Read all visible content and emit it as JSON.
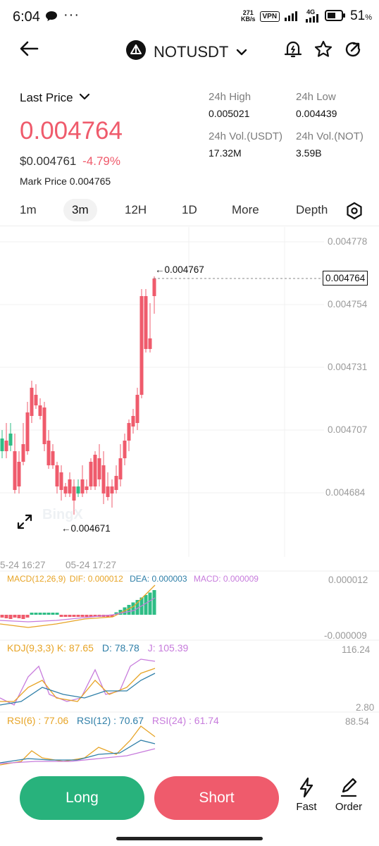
{
  "status_bar": {
    "time": "6:04",
    "net_speed_value": "271",
    "net_speed_unit": "KB/s",
    "vpn": "VPN",
    "network": "4G",
    "battery": "51",
    "battery_unit": "%"
  },
  "header": {
    "symbol": "NOTUSDT",
    "icons": [
      "back-arrow-icon",
      "chevron-down-icon",
      "price-alert-icon",
      "star-icon",
      "share-icon"
    ]
  },
  "price": {
    "mode_label": "Last Price",
    "last_price": "0.004764",
    "usd_price": "$0.004761",
    "change": "-4.79%",
    "mark_price_label": "Mark Price",
    "mark_price": "0.004765"
  },
  "stats": {
    "high_label": "24h High",
    "high": "0.005021",
    "low_label": "24h Low",
    "low": "0.004439",
    "vol_usdt_label": "24h Vol.(USDT)",
    "vol_usdt": "17.32M",
    "vol_not_label": "24h Vol.(NOT)",
    "vol_not": "3.59B"
  },
  "timeframes": {
    "items": [
      "1m",
      "3m",
      "12H",
      "1D",
      "More",
      "Depth"
    ],
    "selected": "3m"
  },
  "chart": {
    "y_labels": [
      "0.004778",
      "0.004754",
      "0.004731",
      "0.004707",
      "0.004684"
    ],
    "current_price_tag": "0.004764",
    "high_marker": "←0.004767",
    "low_marker": "←0.004671",
    "time_labels": [
      "5-24 16:27",
      "05-24 17:27"
    ],
    "watermark": "BingX"
  },
  "macd": {
    "title": "MACD(12,26,9)",
    "dif": "DIF: 0.000012",
    "dea": "DEA: 0.000003",
    "macd": "MACD: 0.000009",
    "y_top": "0.000012",
    "y_bottom": "-0.000009"
  },
  "kdj": {
    "title": "KDJ(9,3,3)",
    "k": "K: 87.65",
    "d": "D: 78.78",
    "j": "J: 105.39",
    "y_top": "116.24",
    "y_bottom": "2.80"
  },
  "rsi": {
    "rsi6": "RSI(6) : 77.06",
    "rsi12": "RSI(12) : 70.67",
    "rsi24": "RSI(24) : 61.74",
    "y_top": "88.54"
  },
  "actions": {
    "long": "Long",
    "short": "Short",
    "fast": "Fast",
    "order": "Order"
  },
  "colors": {
    "up": "#2ebd85",
    "down": "#ef5b6c",
    "long_button": "#28b27c",
    "short_button": "#ef5b6c",
    "dif_line": "#e7a426",
    "dea_line": "#2f7fa8",
    "j_line": "#c77bdc"
  }
}
